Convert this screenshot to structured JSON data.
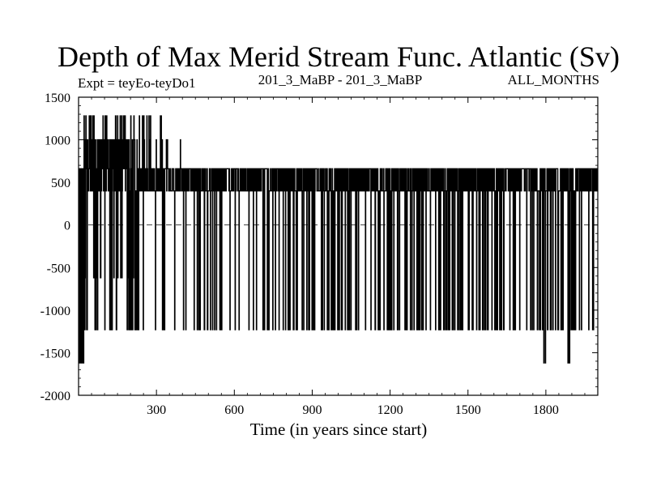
{
  "chart_data": {
    "type": "line",
    "title": "Depth of Max Merid Stream Func. Atlantic (Sv)",
    "subtitle_left": "Expt = teyEo-teyDo1",
    "subtitle_center": "201_3_MaBP - 201_3_MaBP",
    "subtitle_right": "ALL_MONTHS",
    "xlabel": "Time (in years since start)",
    "ylabel": "",
    "xlim": [
      0,
      2000
    ],
    "ylim": [
      -2000,
      1500
    ],
    "x_ticks": [
      300,
      600,
      900,
      1200,
      1500,
      1800
    ],
    "y_ticks": [
      -2000,
      -1500,
      -1000,
      -500,
      0,
      500,
      1000,
      1500
    ],
    "zero_line": true,
    "grid": false,
    "legend": "none",
    "series": [
      {
        "color": "#000000",
        "levels": [
          -1620,
          -1230,
          -620,
          400,
          660,
          1000,
          1280
        ],
        "base_level": 400,
        "x": [
          0,
          2000
        ],
        "description_values": []
      }
    ]
  }
}
